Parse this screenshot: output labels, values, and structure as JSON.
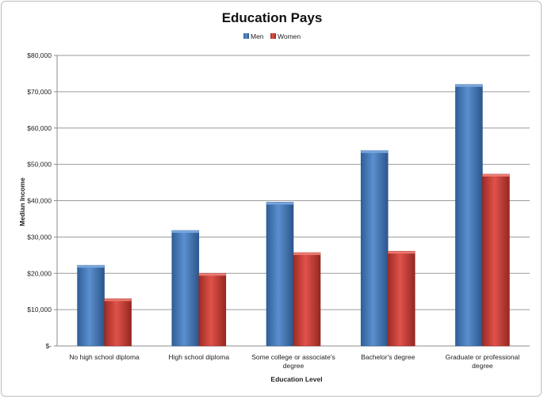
{
  "chart_data": {
    "type": "bar",
    "title": "Education Pays",
    "xlabel": "Education  Level",
    "ylabel": "Median  Income",
    "categories": [
      [
        "No high school diploma"
      ],
      [
        "High school diploma"
      ],
      [
        "Some college or associate's",
        "degree"
      ],
      [
        "Bachelor's degree"
      ],
      [
        "Graduate or professional",
        "degree"
      ]
    ],
    "series": [
      {
        "name": "Men",
        "color": "#4a7ebb",
        "values": [
          22200,
          31800,
          39600,
          53800,
          72000
        ]
      },
      {
        "name": "Women",
        "color": "#c0392b",
        "values": [
          13000,
          20000,
          25700,
          26100,
          47300
        ]
      }
    ],
    "ylim": [
      0,
      80000
    ],
    "yticks": [
      0,
      10000,
      20000,
      30000,
      40000,
      50000,
      60000,
      70000,
      80000
    ],
    "ytick_labels": [
      "$-",
      "$10,000",
      "$20,000",
      "$30,000",
      "$40,000",
      "$50,000",
      "$60,000",
      "$70,000",
      "$80,000"
    ],
    "grid": true,
    "legend_position": "top"
  }
}
